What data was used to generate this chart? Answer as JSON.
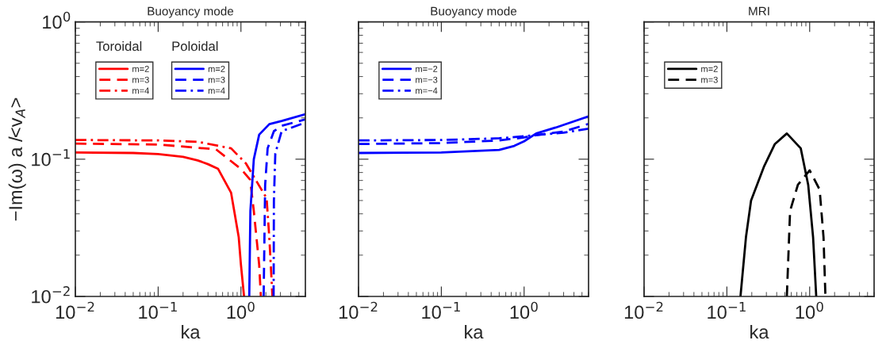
{
  "chart_data": [
    {
      "type": "line",
      "title": "Buoyancy mode",
      "xlabel": "ka",
      "ylabel": "−Im(ω) a /<v$_{A}$>",
      "log": "xy",
      "xlim": [
        0.01,
        6
      ],
      "ylim": [
        0.01,
        1
      ],
      "xticks": [
        {
          "value": 0.01,
          "label": "10$^{−2}$"
        },
        {
          "value": 0.1,
          "label": "10$^{−1}$"
        },
        {
          "value": 1,
          "label": "10$^{0}$"
        }
      ],
      "yticks": [
        {
          "value": 0.01,
          "label": "10$^{−2}$"
        },
        {
          "value": 0.1,
          "label": "10$^{−1}$"
        },
        {
          "value": 1,
          "label": "10$^{0}$"
        }
      ],
      "legend": "top left",
      "legend_title": [
        "Toroidal",
        "Poloidal"
      ],
      "series": [
        {
          "name": "m=2",
          "color": "#ff0000",
          "line_style": "solid",
          "x": [
            0.01,
            0.05,
            0.1,
            0.2,
            0.3,
            0.4,
            0.53,
            0.76,
            0.94,
            1.0,
            1.09
          ],
          "values": [
            0.112,
            0.111,
            0.109,
            0.104,
            0.098,
            0.092,
            0.085,
            0.057,
            0.027,
            0.017,
            0.01
          ]
        },
        {
          "name": "m=3",
          "color": "#ff0000",
          "line_style": "dashed",
          "x": [
            0.01,
            0.1,
            0.5,
            1.0,
            1.29,
            1.43,
            1.66,
            1.74
          ],
          "values": [
            0.13,
            0.128,
            0.118,
            0.085,
            0.071,
            0.042,
            0.017,
            0.01
          ]
        },
        {
          "name": "m=4",
          "color": "#ff0000",
          "line_style": "dashdot",
          "x": [
            0.01,
            0.1,
            0.3,
            0.76,
            1.15,
            1.5,
            2.04,
            2.2,
            2.4
          ],
          "values": [
            0.138,
            0.137,
            0.134,
            0.12,
            0.093,
            0.071,
            0.052,
            0.027,
            0.01
          ]
        },
        {
          "name": "m=2",
          "color": "#0000ff",
          "line_style": "solid",
          "x": [
            1.26,
            1.3,
            1.43,
            1.66,
            2.2,
            3.1,
            6
          ],
          "values": [
            0.01,
            0.042,
            0.1,
            0.151,
            0.18,
            0.19,
            0.213
          ]
        },
        {
          "name": "m=3",
          "color": "#0000ff",
          "line_style": "dashed",
          "x": [
            1.88,
            1.96,
            2.1,
            2.5,
            3.1,
            6
          ],
          "values": [
            0.01,
            0.065,
            0.12,
            0.16,
            0.175,
            0.195
          ]
        },
        {
          "name": "m=4",
          "color": "#0000ff",
          "line_style": "dashdot",
          "x": [
            2.48,
            2.5,
            2.6,
            3.1,
            6
          ],
          "values": [
            0.01,
            0.05,
            0.11,
            0.16,
            0.185
          ]
        }
      ]
    },
    {
      "type": "line",
      "title": "Buoyancy mode",
      "xlabel": "ka",
      "log": "xy",
      "xlim": [
        0.01,
        6
      ],
      "ylim": [
        0.01,
        1
      ],
      "tick_labels": "x",
      "xticks": [
        {
          "value": 0.01,
          "label": "10$^{−2}$"
        },
        {
          "value": 0.1,
          "label": "10$^{−1}$"
        },
        {
          "value": 1,
          "label": "10$^{0}$"
        }
      ],
      "yticks": [
        {
          "value": 0.01,
          "label": null
        },
        {
          "value": 0.1,
          "label": null
        },
        {
          "value": 1,
          "label": null
        }
      ],
      "legend": "top left",
      "series": [
        {
          "name": "m=−2",
          "color": "#0000ff",
          "line_style": "solid",
          "x": [
            0.01,
            0.1,
            0.5,
            0.76,
            1.0,
            1.4,
            2.4,
            6
          ],
          "values": [
            0.111,
            0.112,
            0.117,
            0.125,
            0.135,
            0.154,
            0.17,
            0.205
          ]
        },
        {
          "name": "m=−3",
          "color": "#0000ff",
          "line_style": "dashed",
          "x": [
            0.01,
            0.1,
            0.5,
            1.0,
            1.4,
            3.0,
            6
          ],
          "values": [
            0.129,
            0.131,
            0.137,
            0.144,
            0.15,
            0.159,
            0.181
          ]
        },
        {
          "name": "m=−4",
          "color": "#0000ff",
          "line_style": "dashdot",
          "x": [
            0.01,
            0.1,
            0.5,
            1.0,
            1.4,
            3.0,
            6
          ],
          "values": [
            0.137,
            0.138,
            0.142,
            0.147,
            0.15,
            0.156,
            0.167
          ]
        }
      ]
    },
    {
      "type": "line",
      "title": "MRI",
      "xlabel": "ka",
      "log": "xy",
      "xlim": [
        0.01,
        6
      ],
      "ylim": [
        0.01,
        1
      ],
      "tick_labels": "x",
      "xticks": [
        {
          "value": 0.01,
          "label": "10$^{−2}$"
        },
        {
          "value": 0.1,
          "label": "10$^{−1}$"
        },
        {
          "value": 1,
          "label": "10$^{0}$"
        }
      ],
      "yticks": [
        {
          "value": 0.01,
          "label": null
        },
        {
          "value": 0.1,
          "label": null
        },
        {
          "value": 1,
          "label": null
        }
      ],
      "legend": "top left",
      "series": [
        {
          "name": "m=2",
          "color": "#000000",
          "line_style": "solid",
          "x": [
            0.146,
            0.17,
            0.196,
            0.28,
            0.38,
            0.53,
            0.78,
            0.96,
            1.1,
            1.2
          ],
          "values": [
            0.01,
            0.027,
            0.05,
            0.088,
            0.129,
            0.154,
            0.12,
            0.065,
            0.027,
            0.01
          ]
        },
        {
          "name": "m=3",
          "color": "#000000",
          "line_style": "dashed",
          "x": [
            0.53,
            0.58,
            0.72,
            1.0,
            1.32,
            1.47,
            1.55
          ],
          "values": [
            0.01,
            0.042,
            0.065,
            0.083,
            0.06,
            0.027,
            0.01
          ]
        }
      ]
    }
  ]
}
